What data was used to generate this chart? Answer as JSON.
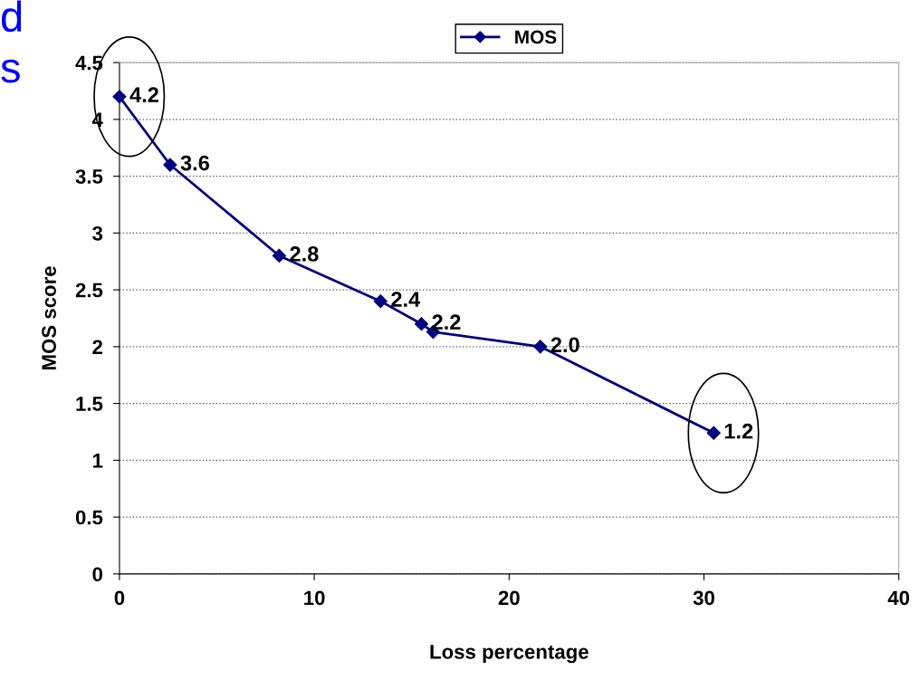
{
  "chart_data": {
    "type": "line",
    "xlabel": "Loss percentage",
    "ylabel": "MOS score",
    "annotations": [
      "d",
      "s"
    ],
    "x": [
      0,
      2.6,
      8.2,
      13.4,
      15.5,
      16.1,
      21.6,
      30.5
    ],
    "series": [
      {
        "name": "MOS",
        "color": "#000080",
        "values": [
          4.2,
          3.6,
          2.8,
          2.4,
          2.2,
          2.13,
          2.0,
          1.24
        ],
        "value_labels": [
          "4.2",
          "3.6",
          "2.8",
          "2.4",
          "2.2",
          null,
          "2.0",
          "1.2"
        ]
      }
    ],
    "xlim": [
      0,
      40
    ],
    "xticks": [
      0,
      10,
      20,
      30,
      40
    ],
    "ylim": [
      0,
      4.5
    ],
    "yticks": [
      0,
      0.5,
      1,
      1.5,
      2,
      2.5,
      3,
      3.5,
      4,
      4.5
    ],
    "grid": "y",
    "legend": "top",
    "marker": "diamond",
    "line_style": "solid"
  }
}
